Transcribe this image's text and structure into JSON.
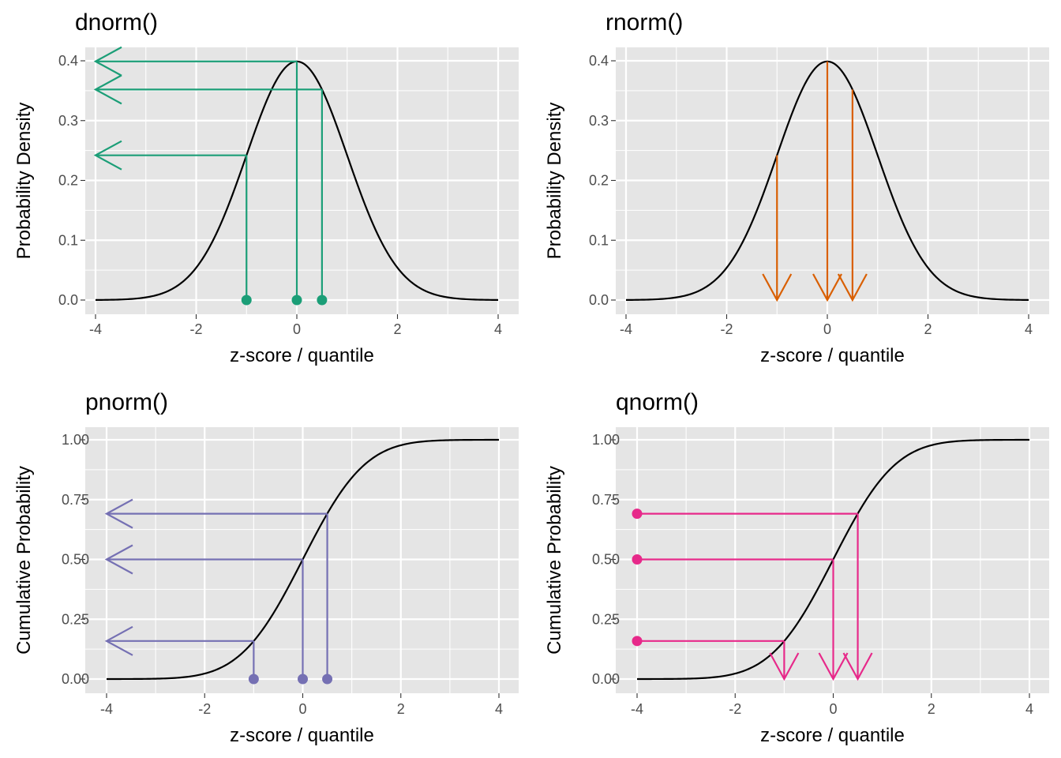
{
  "colors": {
    "panel_bg": "#E5E5E5",
    "grid": "#FFFFFF",
    "curve": "#000000",
    "tick_text": "#4D4D4D",
    "dnorm": "#1B9E77",
    "rnorm": "#D95F02",
    "pnorm": "#7570B3",
    "qnorm": "#E7298A"
  },
  "chart_data": [
    {
      "type": "line",
      "title": "dnorm()",
      "xlabel": "z-score / quantile",
      "ylabel": "Probability Density",
      "xlim": [
        -4,
        4
      ],
      "ylim": [
        0,
        0.4
      ],
      "x_ticks": [
        -4,
        -2,
        0,
        2,
        4
      ],
      "x_tick_labels": [
        "-4",
        "-2",
        "0",
        "2",
        "4"
      ],
      "y_ticks": [
        0,
        0.1,
        0.2,
        0.3,
        0.4
      ],
      "y_tick_labels": [
        "0.0",
        "0.1",
        "0.2",
        "0.3",
        "0.4"
      ],
      "grid": true,
      "curve": "normal density",
      "highlight_color": "dnorm",
      "highlight_points": [
        {
          "x": -1.0,
          "y": 0.242
        },
        {
          "x": 0.0,
          "y": 0.399
        },
        {
          "x": 0.5,
          "y": 0.352
        }
      ],
      "annotation": "points on x-axis, vertical lines up to curve, arrows left to y-axis"
    },
    {
      "type": "line",
      "title": "rnorm()",
      "xlabel": "z-score / quantile",
      "ylabel": "Probability Density",
      "xlim": [
        -4,
        4
      ],
      "ylim": [
        0,
        0.4
      ],
      "x_ticks": [
        -4,
        -2,
        0,
        2,
        4
      ],
      "x_tick_labels": [
        "-4",
        "-2",
        "0",
        "2",
        "4"
      ],
      "y_ticks": [
        0,
        0.1,
        0.2,
        0.3,
        0.4
      ],
      "y_tick_labels": [
        "0.0",
        "0.1",
        "0.2",
        "0.3",
        "0.4"
      ],
      "grid": true,
      "curve": "normal density",
      "highlight_color": "rnorm",
      "highlight_points": [
        {
          "x": -1.0,
          "y": 0.242
        },
        {
          "x": 0.0,
          "y": 0.399
        },
        {
          "x": 0.5,
          "y": 0.352
        }
      ],
      "annotation": "vertical arrows from curve down to x-axis"
    },
    {
      "type": "line",
      "title": "pnorm()",
      "xlabel": "z-score / quantile",
      "ylabel": "Cumulative Probability",
      "xlim": [
        -4,
        4
      ],
      "ylim": [
        0,
        1
      ],
      "x_ticks": [
        -4,
        -2,
        0,
        2,
        4
      ],
      "x_tick_labels": [
        "-4",
        "-2",
        "0",
        "2",
        "4"
      ],
      "y_ticks": [
        0,
        0.25,
        0.5,
        0.75,
        1
      ],
      "y_tick_labels": [
        "0.00",
        "0.25",
        "0.50",
        "0.75",
        "1.00"
      ],
      "grid": true,
      "curve": "normal cumulative distribution",
      "highlight_color": "pnorm",
      "highlight_points": [
        {
          "x": -1.0,
          "y": 0.159
        },
        {
          "x": 0.0,
          "y": 0.5
        },
        {
          "x": 0.5,
          "y": 0.691
        }
      ],
      "annotation": "points on x-axis, vertical lines up to curve, arrows left to y-axis"
    },
    {
      "type": "line",
      "title": "qnorm()",
      "xlabel": "z-score / quantile",
      "ylabel": "Cumulative Probability",
      "xlim": [
        -4,
        4
      ],
      "ylim": [
        0,
        1
      ],
      "x_ticks": [
        -4,
        -2,
        0,
        2,
        4
      ],
      "x_tick_labels": [
        "-4",
        "-2",
        "0",
        "2",
        "4"
      ],
      "y_ticks": [
        0,
        0.25,
        0.5,
        0.75,
        1
      ],
      "y_tick_labels": [
        "0.00",
        "0.25",
        "0.50",
        "0.75",
        "1.00"
      ],
      "grid": true,
      "curve": "normal cumulative distribution",
      "highlight_color": "qnorm",
      "highlight_points": [
        {
          "x": -1.0,
          "y": 0.159
        },
        {
          "x": 0.0,
          "y": 0.5
        },
        {
          "x": 0.5,
          "y": 0.691
        }
      ],
      "annotation": "points at y-axis, horizontal lines right to curve, arrows down to x-axis"
    }
  ]
}
